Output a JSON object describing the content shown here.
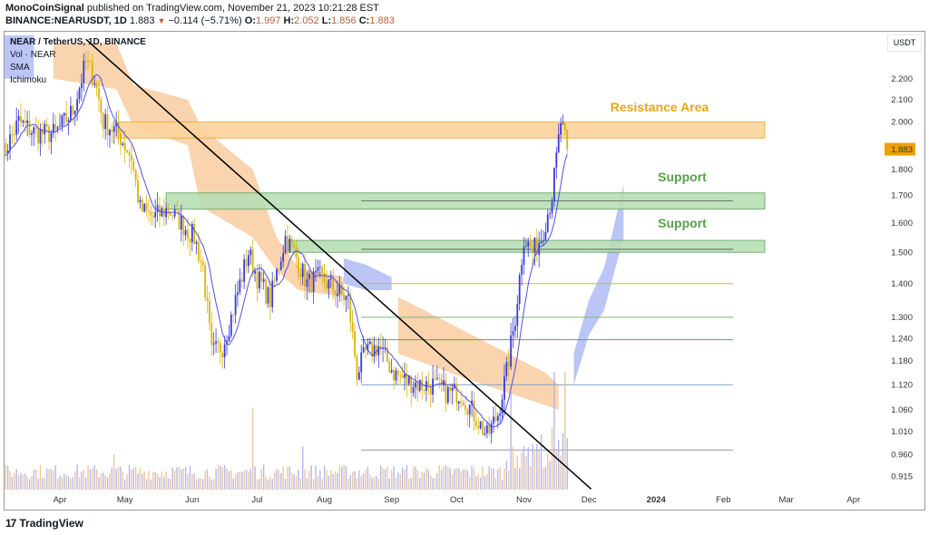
{
  "header": {
    "author": "MonoCoinSignal",
    "published": "published on TradingView.com, November 21, 2023 10:21:28 EST",
    "symbol": "BINANCE:NEARUSDT, 1D",
    "last": "1.883",
    "change": "−0.114 (−5.71%)",
    "o_label": "O:",
    "o": "1.997",
    "h_label": "H:",
    "h": "2.052",
    "l_label": "L:",
    "l": "1.856",
    "c_label": "C:",
    "c": "1.883"
  },
  "legend": [
    "NEAR / TetherUS, 1D, BINANCE",
    "Vol · NEAR",
    "SMA",
    "Ichimoku"
  ],
  "currency_button": "USDT",
  "footer": {
    "brand": "TradingView"
  },
  "colors": {
    "up": "#3a3ad8",
    "down": "#d8b40a",
    "resistance": "#f7b35a",
    "support": "#6cc070",
    "trendline": "#000000",
    "last_price_tag": "#f0a000"
  },
  "chart_data": {
    "type": "candlestick",
    "title": "NEAR / TetherUS, 1D, BINANCE",
    "scale": "log",
    "ylim": [
      0.9,
      2.42
    ],
    "y_ticks": [
      "2.200",
      "2.100",
      "2.000",
      "1.800",
      "1.700",
      "1.600",
      "1.500",
      "1.400",
      "1.300",
      "1.240",
      "1.180",
      "1.120",
      "1.060",
      "1.010",
      "0.960",
      "0.915"
    ],
    "last_price_label": "1.883",
    "x_ticks": [
      {
        "label": "Apr",
        "date": "2023-04-01"
      },
      {
        "label": "May",
        "date": "2023-05-01"
      },
      {
        "label": "Jun",
        "date": "2023-06-01"
      },
      {
        "label": "Jul",
        "date": "2023-07-01"
      },
      {
        "label": "Aug",
        "date": "2023-08-01"
      },
      {
        "label": "Sep",
        "date": "2023-09-01"
      },
      {
        "label": "Oct",
        "date": "2023-10-01"
      },
      {
        "label": "Nov",
        "date": "2023-11-01"
      },
      {
        "label": "Dec",
        "date": "2023-12-01"
      },
      {
        "label": "2024",
        "date": "2024-01-01"
      },
      {
        "label": "Feb",
        "date": "2024-02-01"
      },
      {
        "label": "Mar",
        "date": "2024-03-01"
      },
      {
        "label": "Apr",
        "date": "2024-04-01"
      }
    ],
    "price_path": [
      [
        "2023-03-05",
        1.85
      ],
      [
        "2023-03-13",
        2.0
      ],
      [
        "2023-03-21",
        1.95
      ],
      [
        "2023-03-30",
        1.95
      ],
      [
        "2023-04-07",
        2.05
      ],
      [
        "2023-04-13",
        2.28
      ],
      [
        "2023-04-17",
        2.2
      ],
      [
        "2023-04-21",
        2.0
      ],
      [
        "2023-04-28",
        1.95
      ],
      [
        "2023-05-04",
        1.85
      ],
      [
        "2023-05-08",
        1.65
      ],
      [
        "2023-05-14",
        1.62
      ],
      [
        "2023-05-21",
        1.65
      ],
      [
        "2023-05-27",
        1.6
      ],
      [
        "2023-06-02",
        1.55
      ],
      [
        "2023-06-06",
        1.45
      ],
      [
        "2023-06-10",
        1.2
      ],
      [
        "2023-06-15",
        1.22
      ],
      [
        "2023-06-19",
        1.3
      ],
      [
        "2023-06-23",
        1.4
      ],
      [
        "2023-06-27",
        1.5
      ],
      [
        "2023-07-01",
        1.42
      ],
      [
        "2023-07-07",
        1.35
      ],
      [
        "2023-07-14",
        1.55
      ],
      [
        "2023-07-18",
        1.5
      ],
      [
        "2023-07-24",
        1.4
      ],
      [
        "2023-07-30",
        1.42
      ],
      [
        "2023-08-06",
        1.38
      ],
      [
        "2023-08-12",
        1.35
      ],
      [
        "2023-08-16",
        1.15
      ],
      [
        "2023-08-20",
        1.2
      ],
      [
        "2023-08-26",
        1.22
      ],
      [
        "2023-09-02",
        1.15
      ],
      [
        "2023-09-08",
        1.13
      ],
      [
        "2023-09-14",
        1.12
      ],
      [
        "2023-09-20",
        1.12
      ],
      [
        "2023-09-27",
        1.1
      ],
      [
        "2023-10-03",
        1.1
      ],
      [
        "2023-10-09",
        1.05
      ],
      [
        "2023-10-15",
        1.0
      ],
      [
        "2023-10-20",
        1.05
      ],
      [
        "2023-10-24",
        1.15
      ],
      [
        "2023-10-28",
        1.3
      ],
      [
        "2023-11-01",
        1.55
      ],
      [
        "2023-11-05",
        1.5
      ],
      [
        "2023-11-09",
        1.55
      ],
      [
        "2023-11-14",
        1.7
      ],
      [
        "2023-11-18",
        2.0
      ],
      [
        "2023-11-21",
        1.883
      ]
    ],
    "ichimoku_cloud": [
      {
        "color": "blue",
        "points": [
          [
            "2023-03-05",
            2.42,
            2.2
          ],
          [
            "2023-03-20",
            2.42,
            2.2
          ]
        ]
      },
      {
        "color": "orange",
        "points": [
          [
            "2023-03-29",
            2.38,
            2.2
          ],
          [
            "2023-04-27",
            2.38,
            2.15
          ],
          [
            "2023-05-05",
            2.17,
            1.98
          ],
          [
            "2023-05-30",
            2.1,
            1.9
          ],
          [
            "2023-06-05",
            1.98,
            1.66
          ],
          [
            "2023-06-29",
            1.8,
            1.55
          ],
          [
            "2023-07-10",
            1.55,
            1.44
          ],
          [
            "2023-07-20",
            1.45,
            1.38
          ],
          [
            "2023-08-10",
            1.42,
            1.36
          ]
        ]
      },
      {
        "color": "blue",
        "points": [
          [
            "2023-08-10",
            1.48,
            1.4
          ],
          [
            "2023-08-20",
            1.46,
            1.38
          ],
          [
            "2023-09-01",
            1.42,
            1.38
          ]
        ]
      },
      {
        "color": "orange",
        "points": [
          [
            "2023-09-04",
            1.36,
            1.2
          ],
          [
            "2023-10-08",
            1.25,
            1.13
          ],
          [
            "2023-11-11",
            1.15,
            1.07
          ],
          [
            "2023-11-17",
            1.12,
            1.06
          ]
        ]
      },
      {
        "color": "blue",
        "points": [
          [
            "2023-11-24",
            1.2,
            1.12
          ],
          [
            "2023-12-01",
            1.35,
            1.25
          ],
          [
            "2023-12-08",
            1.45,
            1.32
          ],
          [
            "2023-12-17",
            1.74,
            1.55
          ]
        ]
      }
    ],
    "zones": [
      {
        "label": "Resistance Area",
        "top": 2.0,
        "bottom": 1.93,
        "from": "2023-04-27",
        "kind": "resistance"
      },
      {
        "label": "Support",
        "top": 1.71,
        "bottom": 1.65,
        "from": "2023-05-20",
        "kind": "support",
        "midline": 1.68
      },
      {
        "label": "Support",
        "top": 1.54,
        "bottom": 1.5,
        "from": "2023-07-15",
        "kind": "support",
        "midline": 1.51
      }
    ],
    "levels": [
      {
        "price": 1.4,
        "color": "#e0b020"
      },
      {
        "price": 1.3,
        "color": "#7cb47c"
      },
      {
        "price": 1.237,
        "color": "#5f9a8a"
      },
      {
        "price": 1.12,
        "color": "#7da4cc"
      },
      {
        "price": 0.97,
        "color": "#999999"
      }
    ],
    "trendline": [
      [
        "2023-04-13",
        2.4
      ],
      [
        "2023-12-02",
        0.89
      ]
    ],
    "volume_spikes": [
      [
        "2023-06-29",
        3.2
      ],
      [
        "2023-07-22",
        1.7
      ],
      [
        "2023-04-26",
        1.4
      ],
      [
        "2023-10-26",
        1.5
      ],
      [
        "2023-11-15",
        2.4
      ],
      [
        "2023-11-20",
        2.6
      ]
    ]
  }
}
